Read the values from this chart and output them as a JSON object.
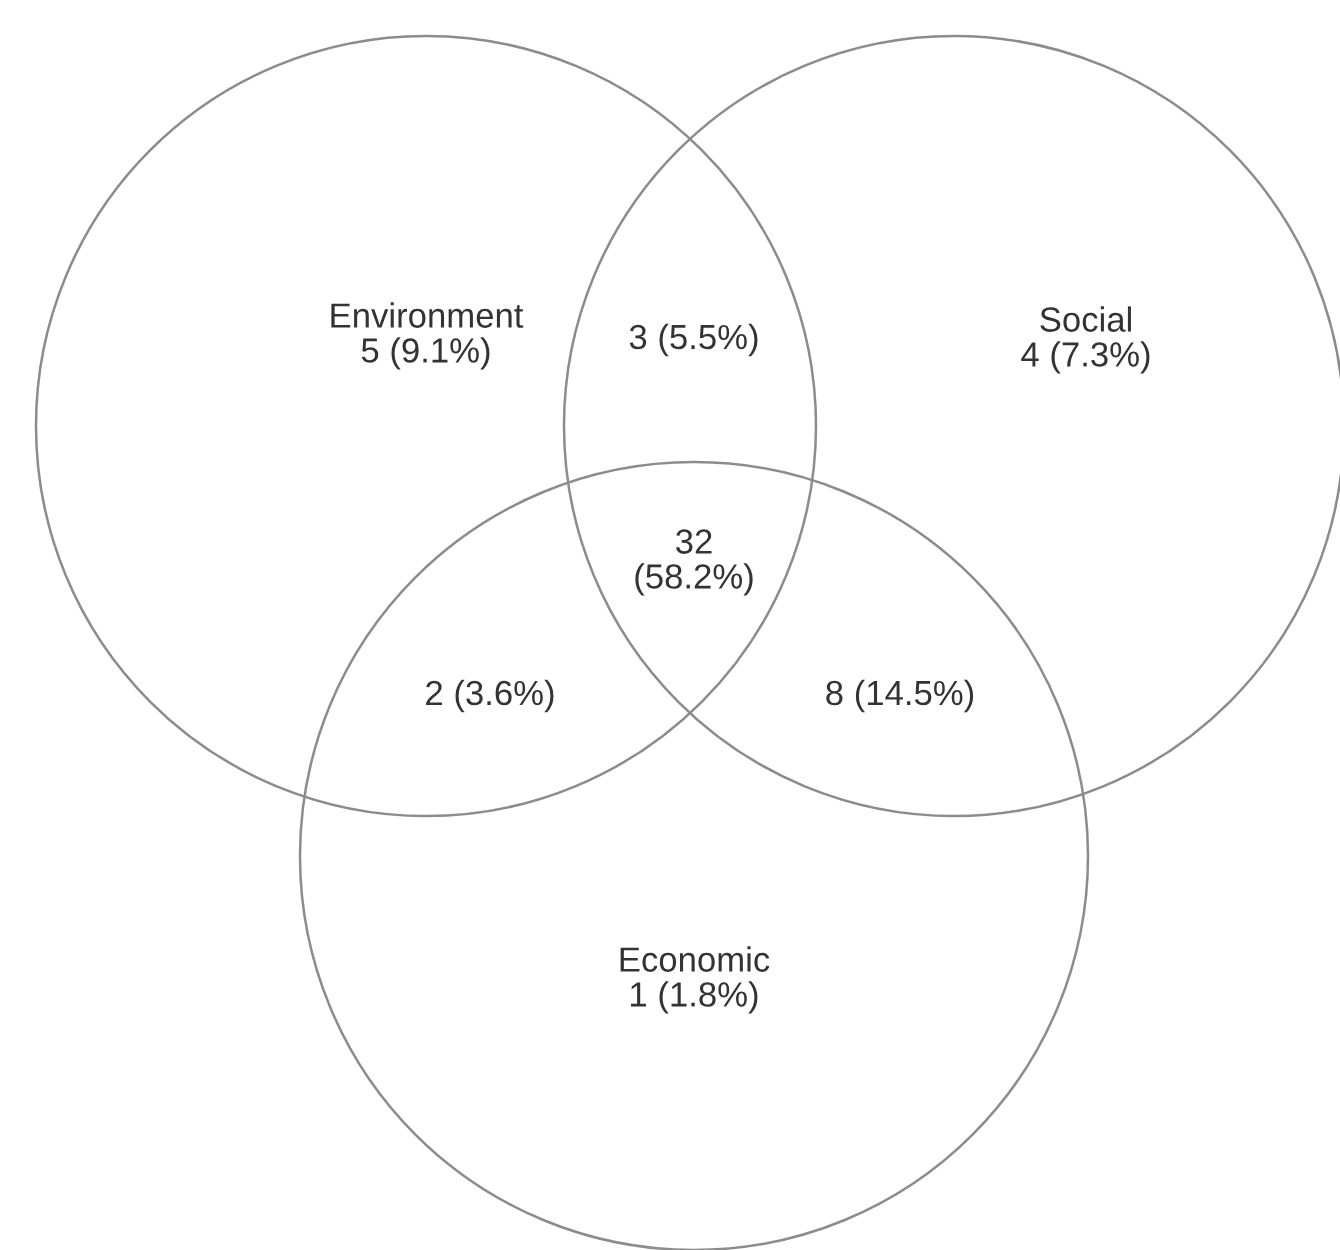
{
  "chart_data": {
    "type": "other",
    "categories": [
      "Environment",
      null,
      "Social",
      null,
      null,
      null,
      "Economic"
    ],
    "values": [
      5,
      3,
      4,
      32,
      2,
      8,
      1
    ],
    "value_labels": [
      "5 (9.1%)",
      "3 (5.5%)",
      "4 (7.3%)",
      "32\n(58.2%)",
      "2 (3.6%)",
      "8 (14.5%)",
      "1 (1.8%)"
    ],
    "color": "#8c8c8c"
  }
}
